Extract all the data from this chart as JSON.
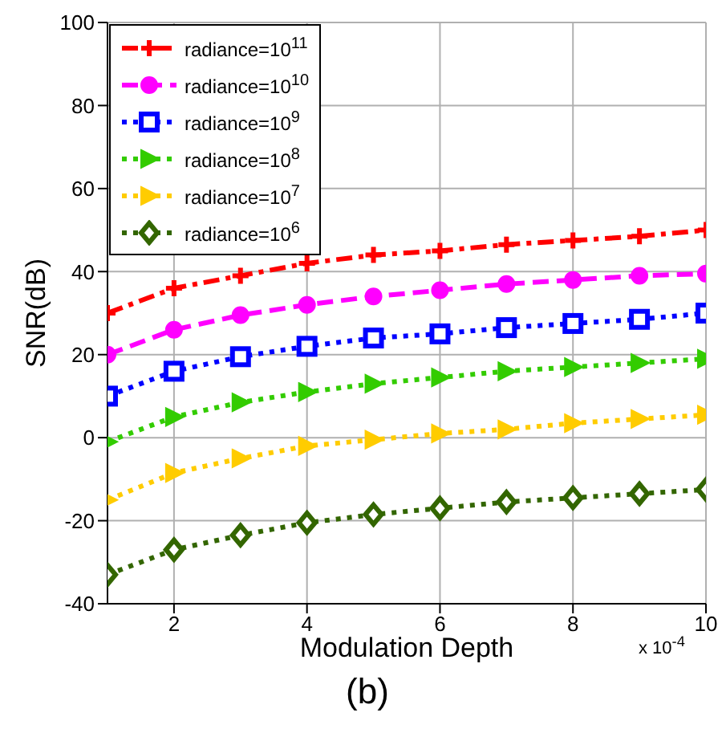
{
  "chart_data": {
    "type": "line",
    "xlabel": "Modulation Depth",
    "ylabel": "SNR(dB)",
    "annotations": [
      "x 10$^{-4}$",
      "(b)"
    ],
    "x": [
      1,
      2,
      3,
      4,
      5,
      6,
      7,
      8,
      9,
      10
    ],
    "xlim": [
      1,
      10
    ],
    "xticks": [
      2,
      4,
      6,
      8,
      10
    ],
    "ylim": [
      -40,
      100
    ],
    "yticks": [
      -40,
      -20,
      0,
      20,
      40,
      60,
      80,
      100
    ],
    "grid": true,
    "legend": "top left",
    "series": [
      {
        "name": "radiance=10$^{11}$",
        "color": "#ff0000",
        "marker": "cross",
        "line_style": "dashdot",
        "values": [
          30,
          36,
          39,
          42,
          44,
          45,
          46.5,
          47.5,
          48.5,
          50
        ]
      },
      {
        "name": "radiance=10$^{10}$",
        "color": "#ff00ff",
        "marker": "circle",
        "line_style": "dashed",
        "values": [
          20,
          26,
          29.5,
          32,
          34,
          35.5,
          37,
          38,
          39,
          39.5
        ]
      },
      {
        "name": "radiance=10$^{9}$",
        "color": "#0000ff",
        "marker": "square",
        "line_style": "dotted",
        "values": [
          10,
          16,
          19.5,
          22,
          24,
          25,
          26.5,
          27.5,
          28.5,
          30
        ]
      },
      {
        "name": "radiance=10$^{8}$",
        "color": "#33cc00",
        "marker": "triangle",
        "line_style": "dotted",
        "values": [
          -1,
          5,
          8.5,
          11,
          13,
          14.5,
          16,
          17,
          18,
          19
        ]
      },
      {
        "name": "radiance=10$^{7}$",
        "color": "#ffcc00",
        "marker": "triangle",
        "line_style": "dotted",
        "values": [
          -15,
          -8.5,
          -5,
          -2,
          -0.5,
          1,
          2,
          3.5,
          4.5,
          5.5
        ]
      },
      {
        "name": "radiance=10$^{6}$",
        "color": "#336600",
        "marker": "diamond",
        "line_style": "dotted",
        "values": [
          -33,
          -27,
          -23.5,
          -20.5,
          -18.5,
          -17,
          -15.5,
          -14.5,
          -13.5,
          -12.5
        ]
      }
    ]
  }
}
